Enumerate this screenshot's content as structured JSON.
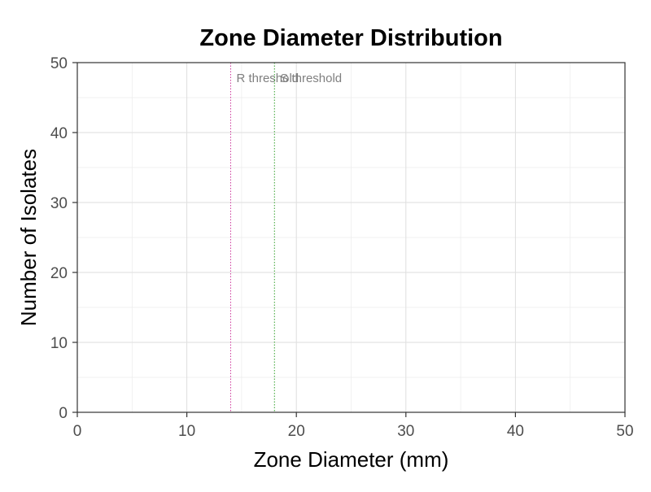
{
  "chart_data": {
    "type": "bar",
    "title": "Zone Diameter Distribution",
    "xlabel": "Zone Diameter (mm)",
    "ylabel": "Number of Isolates",
    "xlim": [
      0,
      50
    ],
    "ylim": [
      0,
      50
    ],
    "x_ticks": [
      0,
      10,
      20,
      30,
      40,
      50
    ],
    "y_ticks": [
      0,
      10,
      20,
      30,
      40,
      50
    ],
    "x_minor_ticks": [
      5,
      15,
      25,
      35,
      45
    ],
    "y_minor_ticks": [
      5,
      15,
      25,
      35,
      45
    ],
    "grid": true,
    "values": [],
    "reference_lines": [
      {
        "label": "R threshold",
        "x": 14,
        "color": "#cc3399"
      },
      {
        "label": "S threshold",
        "x": 18,
        "color": "#33a02c"
      }
    ]
  }
}
